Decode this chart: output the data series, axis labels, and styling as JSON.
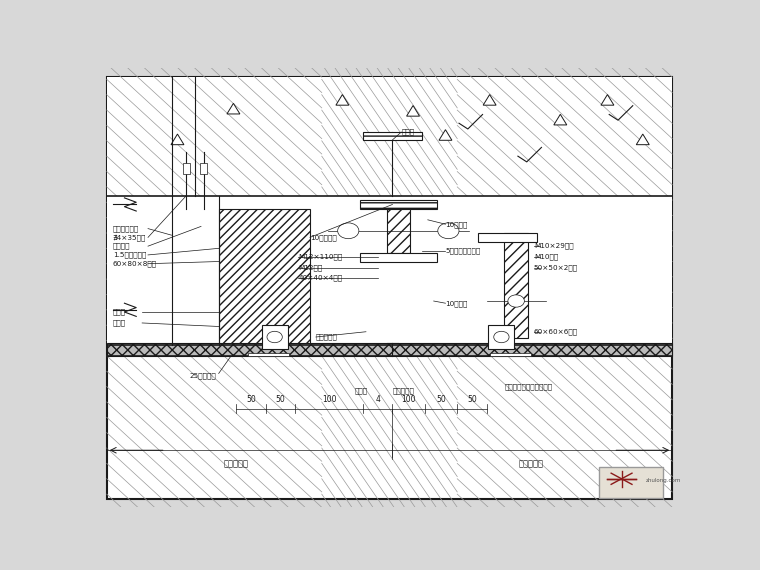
{
  "bg_color": "#d8d8d8",
  "drawing_bg": "#ffffff",
  "line_color": "#1a1a1a",
  "dim_labels": [
    "50",
    "50",
    "100",
    "4",
    "100",
    "50",
    "50"
  ],
  "control_line_left": "尺寸控制线",
  "control_line_right": "尺寸控制线"
}
